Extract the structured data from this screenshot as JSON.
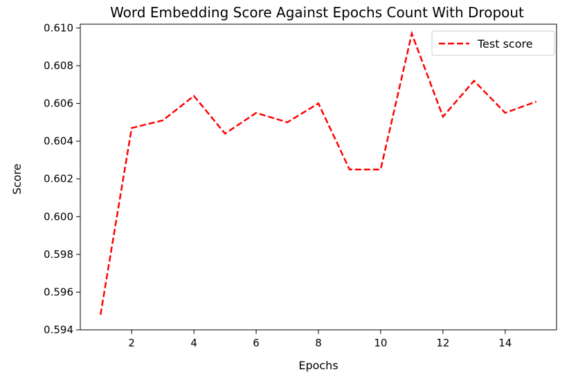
{
  "chart_data": {
    "type": "line",
    "title": "Word Embedding Score Against Epochs Count With Dropout",
    "xlabel": "Epochs",
    "ylabel": "Score",
    "xlim": [
      0.35,
      15.65
    ],
    "ylim": [
      0.594,
      0.6102
    ],
    "x_ticks": [
      2,
      4,
      6,
      8,
      10,
      12,
      14
    ],
    "y_ticks": [
      0.594,
      0.596,
      0.598,
      0.6,
      0.602,
      0.604,
      0.606,
      0.608,
      0.61
    ],
    "x_tick_labels": [
      "2",
      "4",
      "6",
      "8",
      "10",
      "12",
      "14"
    ],
    "y_tick_labels": [
      "0.594",
      "0.596",
      "0.598",
      "0.600",
      "0.602",
      "0.604",
      "0.606",
      "0.608",
      "0.610"
    ],
    "grid": false,
    "legend_position": "top-right",
    "series": [
      {
        "name": "Test score",
        "color": "#ff0000",
        "line_style": "dashed",
        "x": [
          1,
          2,
          3,
          4,
          5,
          6,
          7,
          8,
          9,
          10,
          11,
          12,
          13,
          14,
          15
        ],
        "y": [
          0.5948,
          0.6047,
          0.6051,
          0.6064,
          0.6044,
          0.6055,
          0.605,
          0.606,
          0.6025,
          0.6025,
          0.6097,
          0.6053,
          0.6072,
          0.6055,
          0.6061
        ]
      }
    ]
  }
}
